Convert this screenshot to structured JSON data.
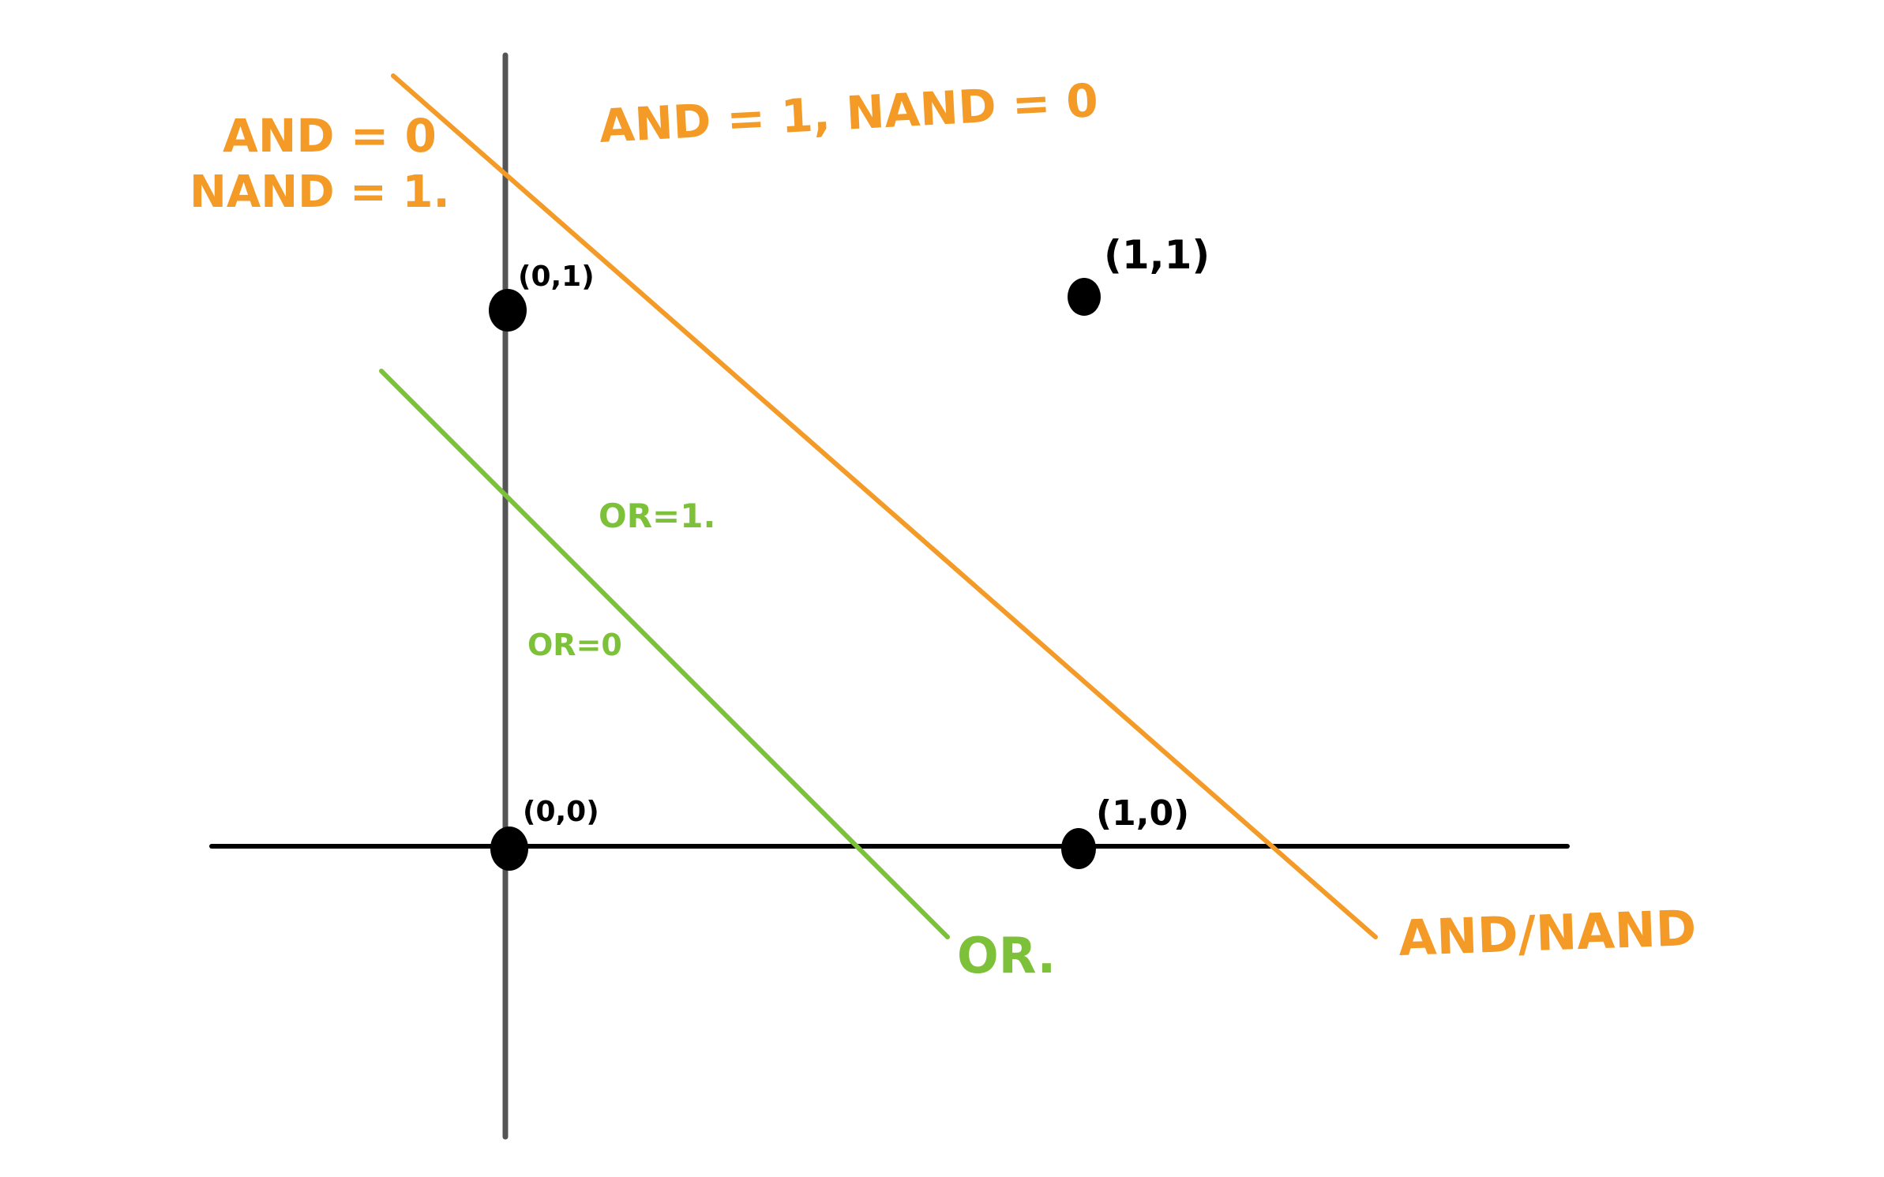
{
  "points": [
    {
      "label": "(0,0)",
      "x": 0,
      "y": 0
    },
    {
      "label": "(1,0)",
      "x": 1,
      "y": 0
    },
    {
      "label": "(0,1)",
      "x": 0,
      "y": 1
    },
    {
      "label": "(1,1)",
      "x": 1,
      "y": 1
    }
  ],
  "lines": {
    "and_nand": {
      "label": "AND/NAND"
    },
    "or": {
      "label": "OR."
    }
  },
  "regions": {
    "and_nand_below_line1": "AND = 0",
    "and_nand_below_line2": "NAND = 1.",
    "and_nand_above": "AND = 1, NAND = 0",
    "or_above": "OR=1.",
    "or_below": "OR=0"
  },
  "colors": {
    "and_nand": "#F39A27",
    "or": "#7DC13A",
    "horizontal_axis": "#000000",
    "vertical_axis": "#555555",
    "points": "#000000"
  }
}
